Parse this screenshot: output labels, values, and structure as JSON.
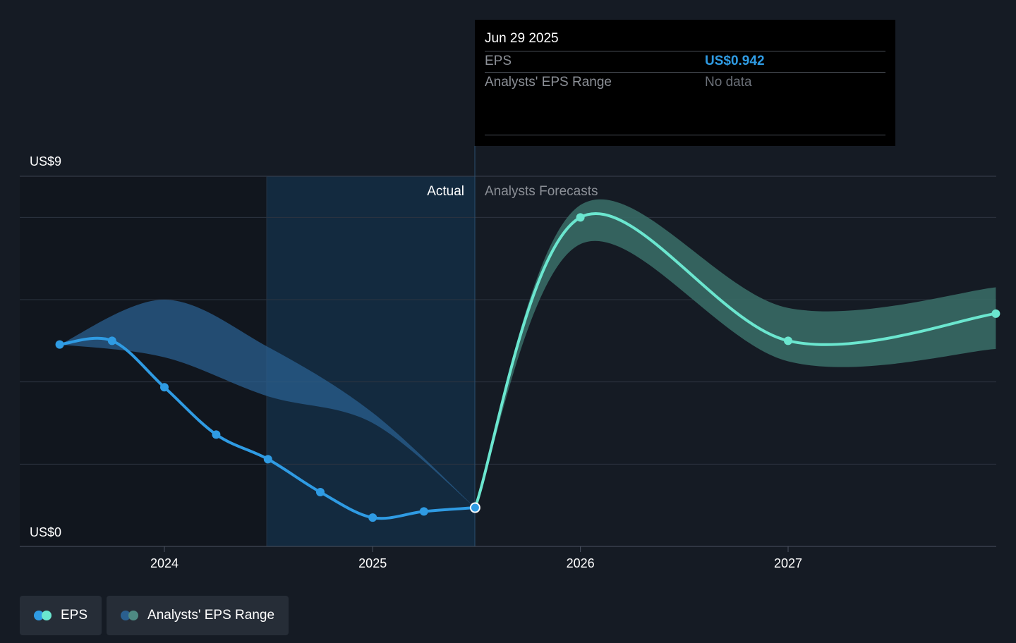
{
  "tooltip": {
    "date": "Jun 29 2025",
    "eps_label": "EPS",
    "eps_value": "US$0.942",
    "range_label": "Analysts' EPS Range",
    "range_value": "No data"
  },
  "regions": {
    "actual_label": "Actual",
    "forecast_label": "Analysts Forecasts"
  },
  "legend": {
    "eps": "EPS",
    "range": "Analysts' EPS Range"
  },
  "colors": {
    "background": "#151b24",
    "eps_actual": "#2f9be3",
    "eps_forecast": "#6be6cf",
    "range_actual": "#2a5f8f",
    "range_forecast": "#3a6f69",
    "value_accent": "#2f9be3"
  },
  "chart_data": {
    "type": "line",
    "y_tick_labels": [
      "US$0",
      "US$9"
    ],
    "ylim": [
      0,
      9
    ],
    "x_tick_labels": [
      "2024",
      "2025",
      "2026",
      "2027"
    ],
    "series": [
      {
        "name": "EPS",
        "points": [
          {
            "x": "2023-06-30",
            "y": 4.91
          },
          {
            "x": "2023-09-30",
            "y": 5.0
          },
          {
            "x": "2023-12-31",
            "y": 3.87
          },
          {
            "x": "2024-03-31",
            "y": 2.72
          },
          {
            "x": "2024-06-30",
            "y": 2.12
          },
          {
            "x": "2024-09-30",
            "y": 1.32
          },
          {
            "x": "2024-12-31",
            "y": 0.7
          },
          {
            "x": "2025-03-31",
            "y": 0.85
          },
          {
            "x": "2025-06-29",
            "y": 0.942
          },
          {
            "x": "2025-12-31",
            "y": 8.0
          },
          {
            "x": "2026-12-31",
            "y": 5.0
          },
          {
            "x": "2027-12-31",
            "y": 5.66
          }
        ]
      },
      {
        "name": "Analysts' EPS Range",
        "ranges": [
          {
            "x": "2023-06-30",
            "low": 4.91,
            "high": 4.91
          },
          {
            "x": "2023-12-31",
            "low": 4.6,
            "high": 6.0
          },
          {
            "x": "2024-06-30",
            "low": 3.65,
            "high": 4.85
          },
          {
            "x": "2024-12-31",
            "low": 3.0,
            "high": 3.25
          },
          {
            "x": "2025-06-29",
            "low": 0.942,
            "high": 0.942
          },
          {
            "x": "2025-12-31",
            "low": 7.35,
            "high": 8.3
          },
          {
            "x": "2026-12-31",
            "low": 4.5,
            "high": 5.8
          },
          {
            "x": "2027-12-31",
            "low": 4.8,
            "high": 6.3
          }
        ]
      }
    ],
    "grid": true
  }
}
